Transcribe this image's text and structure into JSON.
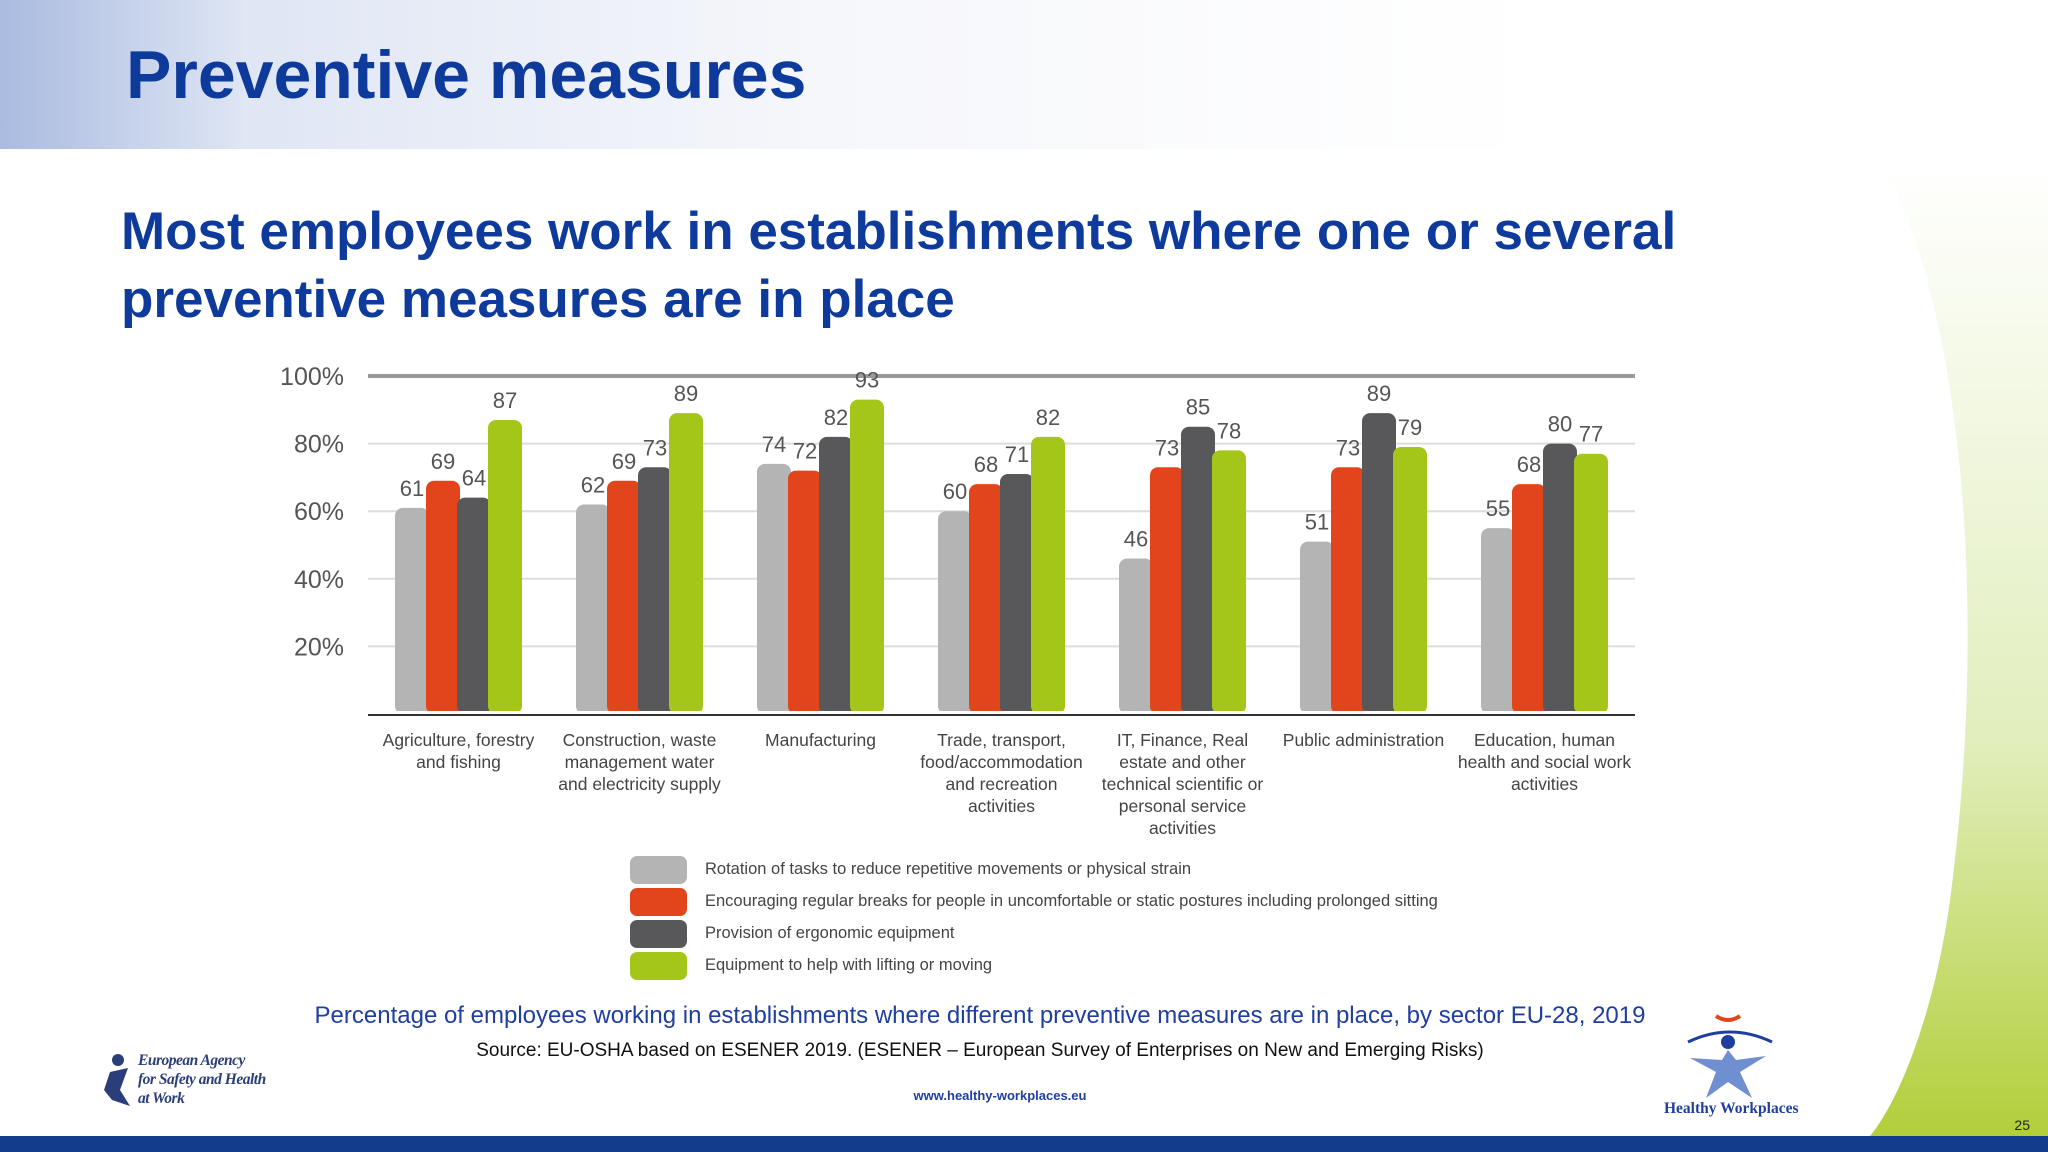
{
  "slide": {
    "title": "Preventive measures",
    "heading": "Most employees work in establishments where one or several preventive measures are in place"
  },
  "chart_data": {
    "type": "bar",
    "categories": [
      "Agriculture, forestry and fishing",
      "Construction, waste management water and electricity supply",
      "Manufacturing",
      "Trade, transport, food/accommodation and recreation activities",
      "IT, Finance, Real estate and other technical scientific or personal service activities",
      "Public administration",
      "Education, human health and social work activities"
    ],
    "series": [
      {
        "name": "Rotation of tasks to reduce repetitive movements or physical strain",
        "color": "#b4b4b4",
        "values": [
          61,
          62,
          74,
          60,
          46,
          51,
          55
        ]
      },
      {
        "name": "Encouraging regular breaks for people in uncomfortable or static postures including prolonged sitting",
        "color": "#e2451b",
        "values": [
          69,
          69,
          72,
          68,
          73,
          73,
          68
        ]
      },
      {
        "name": "Provision of ergonomic equipment",
        "color": "#58585a",
        "values": [
          64,
          73,
          82,
          71,
          85,
          89,
          80
        ]
      },
      {
        "name": "Equipment to help with lifting or moving",
        "color": "#a4c618",
        "values": [
          87,
          89,
          93,
          82,
          78,
          79,
          77
        ]
      }
    ],
    "ylim": [
      0,
      100
    ],
    "yticks": [
      {
        "value": 20,
        "label": "20%"
      },
      {
        "value": 40,
        "label": "40%"
      },
      {
        "value": 60,
        "label": "60%"
      },
      {
        "value": 80,
        "label": "80%"
      },
      {
        "value": 100,
        "label": "100%"
      }
    ],
    "grid": true,
    "caption": "Percentage of employees working in establishments where different preventive measures are in place, by sector EU-28, 2019",
    "source": "Source: EU-OSHA  based on ESENER 2019. (ESENER – European Survey of Enterprises on New and Emerging Risks)"
  },
  "footer": {
    "url": "www.healthy-workplaces.eu",
    "page": "25",
    "agency": [
      "European Agency",
      "for Safety and Health",
      "at Work"
    ],
    "campaign": "Healthy Workplaces"
  }
}
